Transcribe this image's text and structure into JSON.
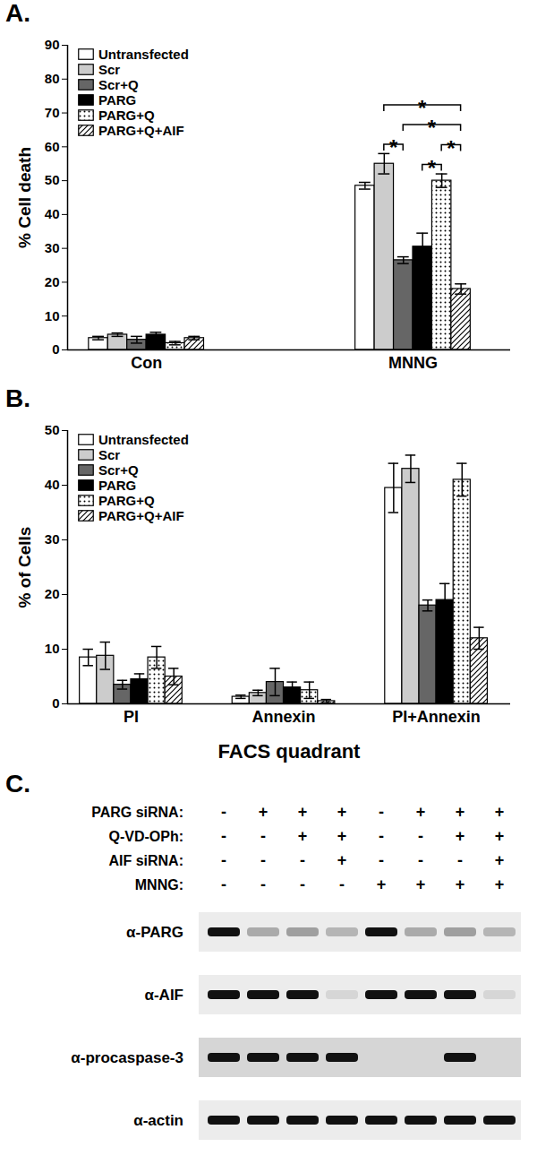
{
  "chart_data": [
    {
      "type": "bar",
      "title": "A.",
      "categories": [
        "Con",
        "MNNG"
      ],
      "ylabel": "% Cell death",
      "ylim": [
        0,
        90
      ],
      "yticks": [
        0,
        10,
        20,
        30,
        40,
        50,
        60,
        70,
        80,
        90
      ],
      "legend": "top-left",
      "series": [
        {
          "name": "Untransfected",
          "color": "#ffffff",
          "values": [
            3.5,
            48.5
          ],
          "errors": [
            0.5,
            1.0
          ]
        },
        {
          "name": "Scr",
          "color": "#cccccc",
          "values": [
            4.5,
            55
          ],
          "errors": [
            0.5,
            3
          ]
        },
        {
          "name": "Scr+Q",
          "color": "#666666",
          "values": [
            3,
            26.5
          ],
          "errors": [
            1,
            1
          ]
        },
        {
          "name": "PARG",
          "color": "#000000",
          "values": [
            4.5,
            30.5
          ],
          "errors": [
            0.7,
            4
          ]
        },
        {
          "name": "PARG+Q",
          "color": "#ffffff",
          "marker": "dots",
          "values": [
            2,
            50
          ],
          "errors": [
            0.5,
            2
          ]
        },
        {
          "name": "PARG+Q+AIF",
          "color": "#ffffff",
          "marker": "hatch",
          "values": [
            3.5,
            18
          ],
          "errors": [
            0.5,
            1.5
          ]
        }
      ],
      "annotations": [
        {
          "category": "MNNG",
          "from": "Scr",
          "to": "Scr+Q",
          "text": "*"
        },
        {
          "category": "MNNG",
          "from": "PARG",
          "to": "PARG+Q",
          "text": "*"
        },
        {
          "category": "MNNG",
          "from": "PARG+Q",
          "to": "PARG+Q+AIF",
          "text": "*"
        },
        {
          "category": "MNNG",
          "from": "Scr+Q",
          "to": "PARG+Q+AIF",
          "text": "*"
        },
        {
          "category": "MNNG",
          "from": "Scr",
          "to": "PARG+Q+AIF",
          "text": "*"
        }
      ]
    },
    {
      "type": "bar",
      "title": "B.",
      "categories": [
        "PI",
        "Annexin",
        "PI+Annexin"
      ],
      "ylabel": "% of Cells",
      "xlabel": "FACS quadrant",
      "ylim": [
        0,
        50
      ],
      "yticks": [
        0,
        10,
        20,
        30,
        40,
        50
      ],
      "legend": "top-left",
      "series": [
        {
          "name": "Untransfected",
          "color": "#ffffff",
          "values": [
            8.5,
            1.3,
            39.5
          ],
          "errors": [
            1.5,
            0.3,
            4.5
          ]
        },
        {
          "name": "Scr",
          "color": "#cccccc",
          "values": [
            8.8,
            2,
            43
          ],
          "errors": [
            2.5,
            0.5,
            2.5
          ]
        },
        {
          "name": "Scr+Q",
          "color": "#666666",
          "values": [
            3.5,
            4,
            18
          ],
          "errors": [
            0.8,
            2.5,
            1
          ]
        },
        {
          "name": "PARG",
          "color": "#000000",
          "values": [
            4.5,
            3,
            19
          ],
          "errors": [
            1,
            1,
            3
          ]
        },
        {
          "name": "PARG+Q",
          "color": "#ffffff",
          "marker": "dots",
          "values": [
            8.5,
            2.5,
            41
          ],
          "errors": [
            2,
            1.5,
            3
          ]
        },
        {
          "name": "PARG+Q+AIF",
          "color": "#ffffff",
          "marker": "hatch",
          "values": [
            5,
            0.5,
            12
          ],
          "errors": [
            1.5,
            0.3,
            2
          ]
        }
      ]
    }
  ],
  "blot": {
    "title": "C.",
    "conditions": [
      {
        "label": "PARG siRNA:",
        "values": [
          "-",
          "+",
          "+",
          "+",
          "-",
          "+",
          "+",
          "+"
        ]
      },
      {
        "label": "Q-VD-OPh:",
        "values": [
          "-",
          "-",
          "+",
          "+",
          "-",
          "-",
          "+",
          "+"
        ]
      },
      {
        "label": "AIF siRNA:",
        "values": [
          "-",
          "-",
          "-",
          "+",
          "-",
          "-",
          "-",
          "+"
        ]
      },
      {
        "label": "MNNG:",
        "values": [
          "-",
          "-",
          "-",
          "-",
          "+",
          "+",
          "+",
          "+"
        ]
      }
    ],
    "rows": [
      {
        "label": "α-PARG",
        "intensity": [
          1.0,
          0.3,
          0.35,
          0.25,
          1.0,
          0.3,
          0.35,
          0.25
        ]
      },
      {
        "label": "α-AIF",
        "intensity": [
          1.0,
          1.0,
          1.0,
          0.1,
          1.0,
          1.0,
          1.0,
          0.1
        ]
      },
      {
        "label": "α-procaspase-3",
        "intensity": [
          1.0,
          1.0,
          1.0,
          1.0,
          0,
          0,
          1.0,
          0
        ]
      },
      {
        "label": "α-actin",
        "intensity": [
          1.0,
          1.0,
          1.0,
          1.0,
          1.0,
          1.0,
          1.0,
          1.0
        ]
      }
    ]
  }
}
